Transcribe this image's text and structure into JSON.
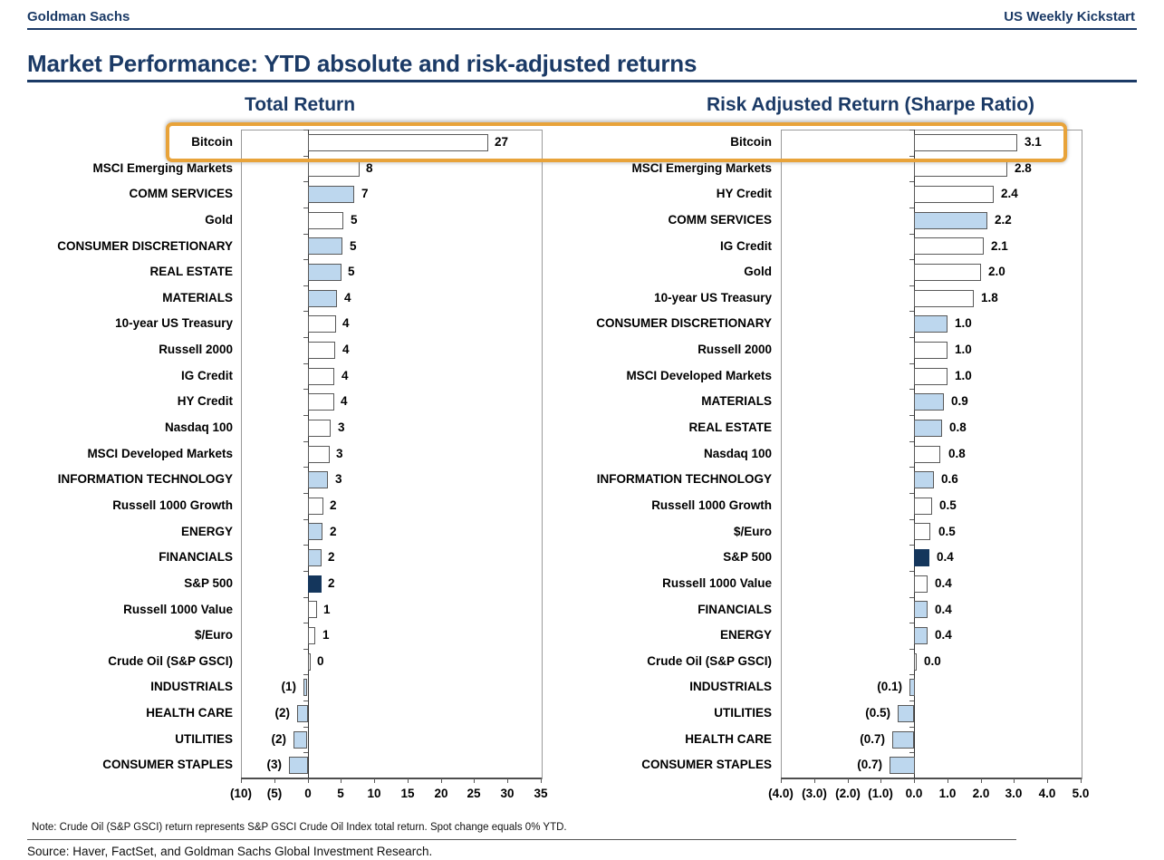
{
  "header": {
    "brand": "Goldman Sachs",
    "report": "US Weekly Kickstart"
  },
  "title": "Market Performance: YTD absolute and risk-adjusted returns",
  "note": "Note: Crude Oil (S&P GSCI) return represents S&P GSCI Crude Oil Index total return. Spot change equals 0% YTD.",
  "source": "Source: Haver, FactSet, and Goldman Sachs Global Investment Research.",
  "colors": {
    "navy": "#1B3A66",
    "sector_blue": "#BDD7EE",
    "spx_navy": "#14365C",
    "highlight_gold": "#E8A33A",
    "bar_border": "#595959"
  },
  "highlight": {
    "target_label": "Bitcoin",
    "note": "gold box around Bitcoin row of both charts"
  },
  "chart_data": [
    {
      "type": "bar",
      "orientation": "horizontal",
      "title": "Total Return",
      "xlim": [
        -10,
        35
      ],
      "xtick_values": [
        -10,
        -5,
        0,
        5,
        10,
        15,
        20,
        25,
        30,
        35
      ],
      "xtick_labels": [
        "(10)",
        "(5)",
        "0",
        "5",
        "10",
        "15",
        "20",
        "25",
        "30",
        "35"
      ],
      "grid": false,
      "rows": [
        {
          "label": "Bitcoin",
          "value": 27,
          "display": "27",
          "style": "plain",
          "bar": 27.0,
          "highlighted": true
        },
        {
          "label": "MSCI Emerging Markets",
          "value": 8,
          "display": "8",
          "style": "plain",
          "bar": 7.7
        },
        {
          "label": "COMM SERVICES",
          "value": 7,
          "display": "7",
          "style": "sector",
          "bar": 7.0
        },
        {
          "label": "Gold",
          "value": 5,
          "display": "5",
          "style": "plain",
          "bar": 5.3
        },
        {
          "label": "CONSUMER DISCRETIONARY",
          "value": 5,
          "display": "5",
          "style": "sector",
          "bar": 5.2
        },
        {
          "label": "REAL ESTATE",
          "value": 5,
          "display": "5",
          "style": "sector",
          "bar": 5.0
        },
        {
          "label": "MATERIALS",
          "value": 4,
          "display": "4",
          "style": "sector",
          "bar": 4.4
        },
        {
          "label": "10-year US Treasury",
          "value": 4,
          "display": "4",
          "style": "plain",
          "bar": 4.2
        },
        {
          "label": "Russell 2000",
          "value": 4,
          "display": "4",
          "style": "plain",
          "bar": 4.1
        },
        {
          "label": "IG Credit",
          "value": 4,
          "display": "4",
          "style": "plain",
          "bar": 4.0
        },
        {
          "label": "HY Credit",
          "value": 4,
          "display": "4",
          "style": "plain",
          "bar": 3.9
        },
        {
          "label": "Nasdaq 100",
          "value": 3,
          "display": "3",
          "style": "plain",
          "bar": 3.4
        },
        {
          "label": "MSCI Developed Markets",
          "value": 3,
          "display": "3",
          "style": "plain",
          "bar": 3.2
        },
        {
          "label": "INFORMATION TECHNOLOGY",
          "value": 3,
          "display": "3",
          "style": "sector",
          "bar": 3.0
        },
        {
          "label": "Russell 1000 Growth",
          "value": 2,
          "display": "2",
          "style": "plain",
          "bar": 2.3
        },
        {
          "label": "ENERGY",
          "value": 2,
          "display": "2",
          "style": "sector",
          "bar": 2.2
        },
        {
          "label": "FINANCIALS",
          "value": 2,
          "display": "2",
          "style": "sector",
          "bar": 2.0
        },
        {
          "label": "S&P 500",
          "value": 2,
          "display": "2",
          "style": "spx",
          "bar": 2.0
        },
        {
          "label": "Russell 1000 Value",
          "value": 1,
          "display": "1",
          "style": "plain",
          "bar": 1.3
        },
        {
          "label": "$/Euro",
          "value": 1,
          "display": "1",
          "style": "plain",
          "bar": 1.1
        },
        {
          "label": "Crude Oil (S&P GSCI)",
          "value": 0,
          "display": "0",
          "style": "plain",
          "bar": 0.2
        },
        {
          "label": "INDUSTRIALS",
          "value": -1,
          "display": "(1)",
          "style": "sector",
          "bar": -0.6
        },
        {
          "label": "HEALTH CARE",
          "value": -2,
          "display": "(2)",
          "style": "sector",
          "bar": -1.6
        },
        {
          "label": "UTILITIES",
          "value": -2,
          "display": "(2)",
          "style": "sector",
          "bar": -2.1
        },
        {
          "label": "CONSUMER STAPLES",
          "value": -3,
          "display": "(3)",
          "style": "sector",
          "bar": -2.8
        }
      ]
    },
    {
      "type": "bar",
      "orientation": "horizontal",
      "title": "Risk Adjusted Return (Sharpe Ratio)",
      "xlim": [
        -4,
        5
      ],
      "xtick_values": [
        -4,
        -3,
        -2,
        -1,
        0,
        1,
        2,
        3,
        4,
        5
      ],
      "xtick_labels": [
        "(4.0)",
        "(3.0)",
        "(2.0)",
        "(1.0)",
        "0.0",
        "1.0",
        "2.0",
        "3.0",
        "4.0",
        "5.0"
      ],
      "grid": false,
      "rows": [
        {
          "label": "Bitcoin",
          "value": 3.1,
          "display": "3.1",
          "style": "plain",
          "bar": 3.1,
          "highlighted": true
        },
        {
          "label": "MSCI Emerging Markets",
          "value": 2.8,
          "display": "2.8",
          "style": "plain",
          "bar": 2.8
        },
        {
          "label": "HY Credit",
          "value": 2.4,
          "display": "2.4",
          "style": "plain",
          "bar": 2.4
        },
        {
          "label": "COMM SERVICES",
          "value": 2.2,
          "display": "2.2",
          "style": "sector",
          "bar": 2.2
        },
        {
          "label": "IG Credit",
          "value": 2.1,
          "display": "2.1",
          "style": "plain",
          "bar": 2.1
        },
        {
          "label": "Gold",
          "value": 2.0,
          "display": "2.0",
          "style": "plain",
          "bar": 2.0
        },
        {
          "label": "10-year US Treasury",
          "value": 1.8,
          "display": "1.8",
          "style": "plain",
          "bar": 1.8
        },
        {
          "label": "CONSUMER DISCRETIONARY",
          "value": 1.0,
          "display": "1.0",
          "style": "sector",
          "bar": 1.0
        },
        {
          "label": "Russell 2000",
          "value": 1.0,
          "display": "1.0",
          "style": "plain",
          "bar": 1.0
        },
        {
          "label": "MSCI Developed Markets",
          "value": 1.0,
          "display": "1.0",
          "style": "plain",
          "bar": 1.0
        },
        {
          "label": "MATERIALS",
          "value": 0.9,
          "display": "0.9",
          "style": "sector",
          "bar": 0.9
        },
        {
          "label": "REAL ESTATE",
          "value": 0.8,
          "display": "0.8",
          "style": "sector",
          "bar": 0.85
        },
        {
          "label": "Nasdaq 100",
          "value": 0.8,
          "display": "0.8",
          "style": "plain",
          "bar": 0.8
        },
        {
          "label": "INFORMATION TECHNOLOGY",
          "value": 0.6,
          "display": "0.6",
          "style": "sector",
          "bar": 0.6
        },
        {
          "label": "Russell 1000 Growth",
          "value": 0.5,
          "display": "0.5",
          "style": "plain",
          "bar": 0.55
        },
        {
          "label": "$/Euro",
          "value": 0.5,
          "display": "0.5",
          "style": "plain",
          "bar": 0.5
        },
        {
          "label": "S&P 500",
          "value": 0.4,
          "display": "0.4",
          "style": "spx",
          "bar": 0.45
        },
        {
          "label": "Russell 1000 Value",
          "value": 0.4,
          "display": "0.4",
          "style": "plain",
          "bar": 0.4
        },
        {
          "label": "FINANCIALS",
          "value": 0.4,
          "display": "0.4",
          "style": "sector",
          "bar": 0.4
        },
        {
          "label": "ENERGY",
          "value": 0.4,
          "display": "0.4",
          "style": "sector",
          "bar": 0.4
        },
        {
          "label": "Crude Oil (S&P GSCI)",
          "value": 0.0,
          "display": "0.0",
          "style": "plain",
          "bar": 0.05
        },
        {
          "label": "INDUSTRIALS",
          "value": -0.1,
          "display": "(0.1)",
          "style": "sector",
          "bar": -0.15
        },
        {
          "label": "UTILITIES",
          "value": -0.5,
          "display": "(0.5)",
          "style": "sector",
          "bar": -0.5
        },
        {
          "label": "HEALTH CARE",
          "value": -0.7,
          "display": "(0.7)",
          "style": "sector",
          "bar": -0.65
        },
        {
          "label": "CONSUMER STAPLES",
          "value": -0.7,
          "display": "(0.7)",
          "style": "sector",
          "bar": -0.75
        }
      ]
    }
  ]
}
